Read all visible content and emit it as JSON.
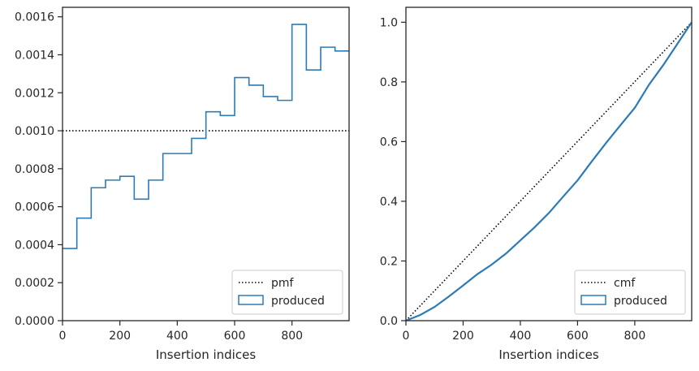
{
  "chart_data": [
    {
      "type": "histogram-step",
      "xlabel": "Insertion indices",
      "ylabel": "",
      "xlim": [
        0,
        999
      ],
      "ylim": [
        0,
        0.00165
      ],
      "xticks": [
        0,
        200,
        400,
        600,
        800
      ],
      "yticks": [
        0,
        0.0002,
        0.0004,
        0.0006,
        0.0008,
        0.001,
        0.0012,
        0.0014,
        0.0016
      ],
      "xtick_labels": [
        "0",
        "200",
        "400",
        "600",
        "800"
      ],
      "ytick_labels": [
        "0.0000",
        "0.0002",
        "0.0004",
        "0.0006",
        "0.0008",
        "0.0010",
        "0.0012",
        "0.0014",
        "0.0016"
      ],
      "bin_edges": [
        0,
        50,
        100,
        150,
        200,
        250,
        300,
        350,
        400,
        450,
        500,
        550,
        600,
        650,
        700,
        750,
        800,
        850,
        900,
        950,
        1000
      ],
      "series": [
        {
          "name": "pmf",
          "style": "dotted",
          "color": "#000000",
          "x": [
            0,
            999
          ],
          "values": [
            0.001,
            0.001
          ]
        },
        {
          "name": "produced",
          "style": "step",
          "color": "#2c7bb6",
          "values": [
            0.00038,
            0.00054,
            0.0007,
            0.00074,
            0.00076,
            0.00064,
            0.00074,
            0.00088,
            0.00088,
            0.00096,
            0.0011,
            0.00108,
            0.00128,
            0.00124,
            0.00118,
            0.00116,
            0.00156,
            0.00132,
            0.00144,
            0.00142
          ]
        }
      ],
      "legend": {
        "position": "lower-right",
        "entries": [
          "pmf",
          "produced"
        ]
      },
      "grid": false
    },
    {
      "type": "line",
      "xlabel": "Insertion indices",
      "ylabel": "",
      "xlim": [
        0,
        999
      ],
      "ylim": [
        0,
        1.05
      ],
      "xticks": [
        0,
        200,
        400,
        600,
        800
      ],
      "yticks": [
        0,
        0.2,
        0.4,
        0.6,
        0.8,
        1.0
      ],
      "xtick_labels": [
        "0",
        "200",
        "400",
        "600",
        "800"
      ],
      "ytick_labels": [
        "0.0",
        "0.2",
        "0.4",
        "0.6",
        "0.8",
        "1.0"
      ],
      "series": [
        {
          "name": "cmf",
          "style": "dotted",
          "color": "#000000",
          "x": [
            0,
            999
          ],
          "y": [
            0,
            1.0
          ]
        },
        {
          "name": "produced",
          "style": "line",
          "color": "#2c7bb6",
          "x": [
            0,
            50,
            100,
            150,
            200,
            250,
            300,
            350,
            400,
            450,
            500,
            550,
            600,
            650,
            700,
            750,
            800,
            850,
            900,
            950,
            999
          ],
          "y": [
            0,
            0.019,
            0.046,
            0.081,
            0.118,
            0.156,
            0.188,
            0.225,
            0.269,
            0.313,
            0.361,
            0.416,
            0.47,
            0.534,
            0.596,
            0.655,
            0.713,
            0.791,
            0.857,
            0.929,
            1.0
          ]
        }
      ],
      "legend": {
        "position": "lower-right",
        "entries": [
          "cmf",
          "produced"
        ]
      },
      "grid": false
    }
  ]
}
